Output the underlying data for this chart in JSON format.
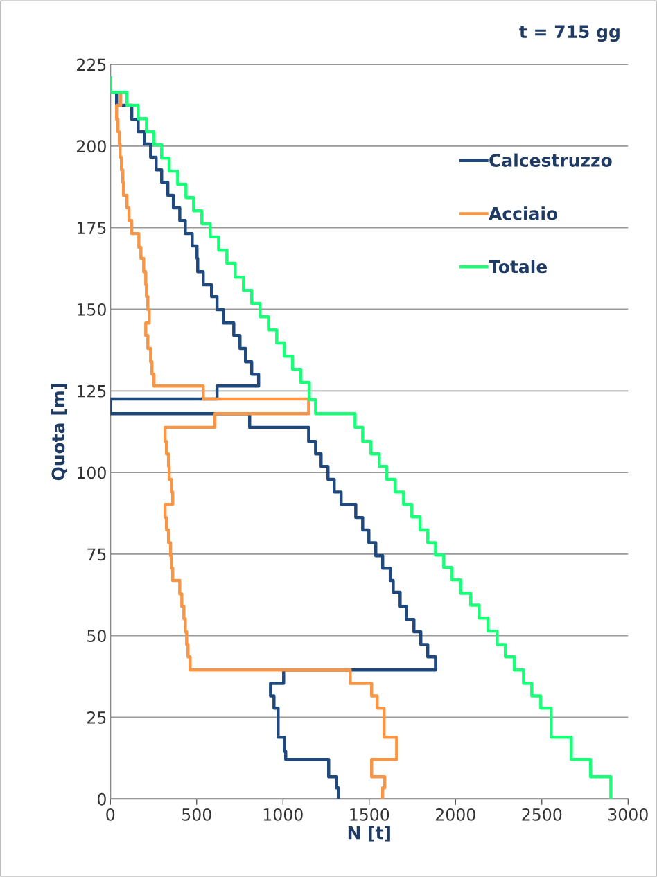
{
  "chart_data": {
    "type": "step",
    "title": "t = 715 gg",
    "xlabel": "N [t]",
    "ylabel": "Quota [m]",
    "xlim": [
      0,
      3000
    ],
    "xticks": [
      0,
      500,
      1000,
      1500,
      2000,
      2500,
      3000
    ],
    "ylim": [
      0,
      225
    ],
    "yticks": [
      0,
      25,
      50,
      75,
      100,
      125,
      150,
      175,
      200,
      225
    ],
    "grid": "y",
    "legend": "top right",
    "line_style": "solid",
    "marker": "none",
    "series": [
      {
        "name": "Calcestruzzo",
        "color": "#1f497d",
        "x": [
          36,
          124,
          161,
          197,
          233,
          265,
          297,
          333,
          365,
          402,
          434,
          474,
          502,
          506,
          538,
          586,
          618,
          655,
          715,
          751,
          783,
          819,
          859,
          618,
          0,
          807,
          1149,
          1189,
          1221,
          1261,
          1297,
          1337,
          1422,
          1462,
          1498,
          1538,
          1578,
          1622,
          1639,
          1679,
          1715,
          1759,
          1799,
          1839,
          1884,
          1004,
          928,
          948,
          972,
          1008,
          1016,
          1265,
          1309,
          1321,
          1321
        ],
        "values": [
          215.5,
          212.5,
          208.2,
          204.4,
          200.6,
          196.6,
          192.7,
          188.9,
          184.9,
          181.1,
          177.2,
          173.2,
          169.4,
          165.6,
          161.5,
          157.5,
          153.9,
          149.9,
          145.8,
          142.0,
          138.0,
          133.9,
          130.1,
          126.5,
          122.5,
          118.0,
          113.8,
          109.5,
          105.7,
          101.9,
          97.9,
          94.0,
          90.2,
          86.2,
          82.4,
          78.5,
          74.5,
          70.7,
          66.9,
          63.3,
          59.0,
          55.0,
          51.2,
          47.3,
          43.5,
          39.5,
          35.4,
          31.6,
          27.8,
          18.9,
          14.6,
          12.1,
          6.8,
          3.4,
          0
        ]
      },
      {
        "name": "Acciaio",
        "color": "#f79646",
        "x": [
          60,
          36,
          44,
          52,
          56,
          64,
          72,
          76,
          96,
          108,
          124,
          165,
          177,
          193,
          205,
          209,
          217,
          225,
          205,
          217,
          233,
          241,
          253,
          538,
          1149,
          606,
          317,
          325,
          337,
          341,
          353,
          361,
          317,
          325,
          337,
          349,
          353,
          361,
          402,
          414,
          426,
          434,
          442,
          450,
          462,
          1390,
          1514,
          1546,
          1586,
          1659,
          1514,
          1590,
          1578,
          1578
        ],
        "values": [
          215.5,
          212.5,
          208.2,
          204.4,
          200.6,
          196.6,
          192.7,
          188.9,
          184.9,
          181.1,
          177.2,
          173.2,
          169.0,
          165.6,
          161.5,
          157.5,
          153.9,
          149.9,
          145.8,
          142.0,
          138.0,
          133.9,
          130.1,
          126.5,
          122.5,
          118.0,
          113.8,
          109.5,
          105.7,
          101.9,
          97.9,
          94.0,
          90.2,
          86.2,
          82.4,
          78.5,
          74.5,
          70.7,
          66.9,
          62.8,
          59.0,
          55.2,
          51.2,
          47.3,
          43.5,
          39.5,
          35.4,
          31.6,
          27.8,
          18.9,
          12.1,
          6.8,
          3.4,
          0
        ]
      },
      {
        "name": "Totale",
        "color": "#1aff78",
        "x": [
          0,
          96,
          161,
          209,
          253,
          297,
          341,
          390,
          438,
          482,
          530,
          578,
          627,
          675,
          723,
          771,
          819,
          867,
          916,
          964,
          1008,
          1056,
          1104,
          1153,
          1189,
          1418,
          1462,
          1510,
          1558,
          1602,
          1651,
          1699,
          1747,
          1795,
          1839,
          1884,
          1932,
          1980,
          2030,
          2088,
          2137,
          2189,
          2241,
          2289,
          2341,
          2394,
          2442,
          2494,
          2554,
          2671,
          2783,
          2900,
          2900
        ],
        "values": [
          221,
          216.5,
          212.5,
          208.4,
          204.4,
          200.4,
          196.3,
          192.3,
          188.3,
          184.2,
          180.2,
          176.2,
          172.2,
          168.1,
          164.1,
          159.8,
          155.8,
          151.8,
          147.7,
          143.7,
          139.7,
          135.6,
          131.6,
          127.6,
          122.3,
          118.0,
          113.8,
          109.5,
          105.7,
          101.9,
          97.9,
          94.0,
          90.2,
          86.4,
          82.4,
          78.5,
          74.7,
          70.9,
          67.1,
          63.0,
          59.4,
          55.4,
          51.4,
          47.3,
          43.5,
          39.5,
          35.4,
          31.6,
          27.8,
          18.9,
          12.1,
          6.8,
          0
        ]
      }
    ]
  }
}
